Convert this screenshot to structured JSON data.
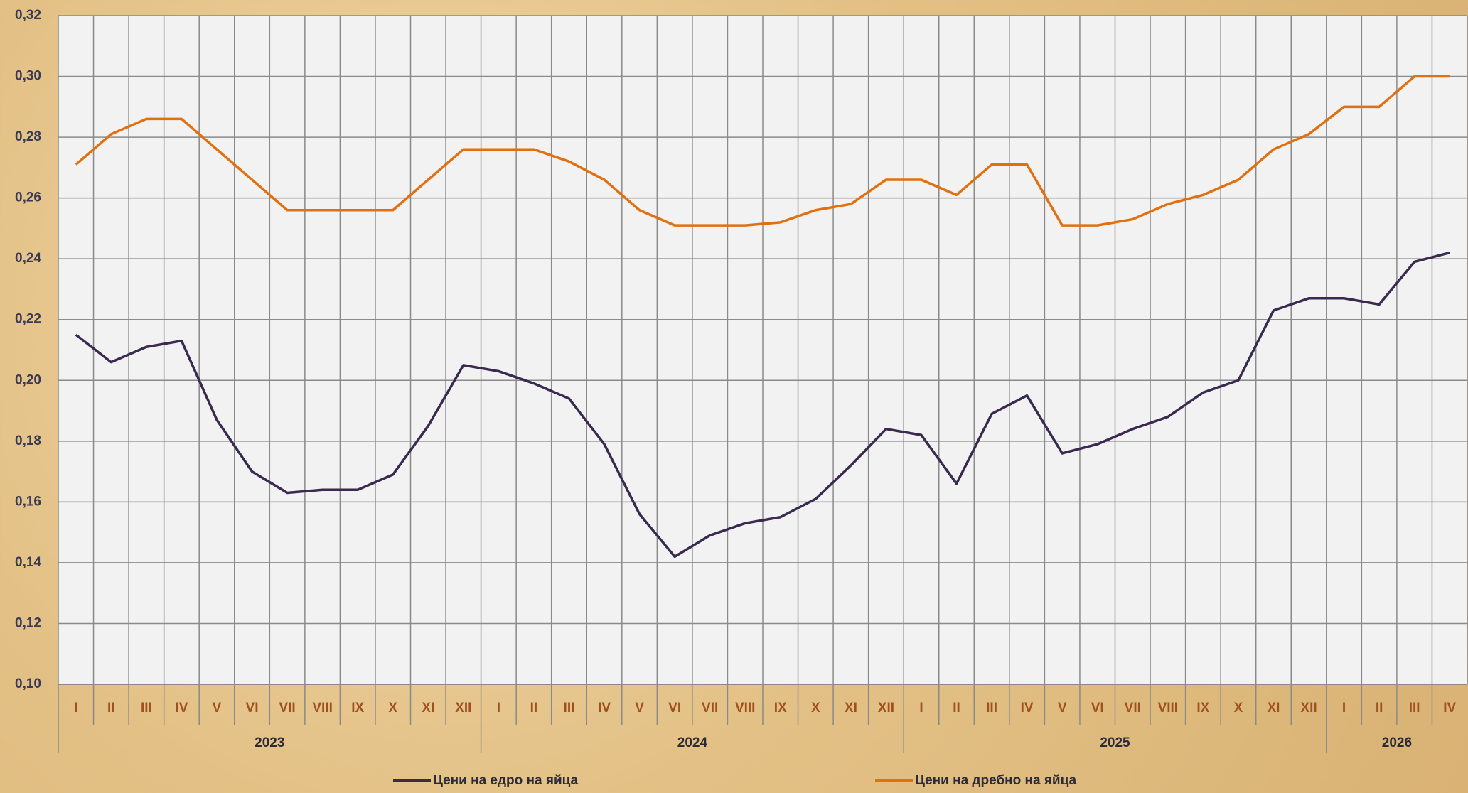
{
  "chart_data": {
    "type": "line",
    "categories": [
      "I",
      "II",
      "III",
      "IV",
      "V",
      "VI",
      "VII",
      "VIII",
      "IX",
      "X",
      "XI",
      "XII",
      "I",
      "II",
      "III",
      "IV",
      "V",
      "VI",
      "VII",
      "VIII",
      "IX",
      "X",
      "XI",
      "XII",
      "I",
      "II",
      "III",
      "IV",
      "V",
      "VI",
      "VII",
      "VIII",
      "IX",
      "X",
      "XI",
      "XII",
      "I",
      "II",
      "III",
      "IV"
    ],
    "groups": [
      "2023",
      "2024",
      "2025",
      "2026"
    ],
    "series": [
      {
        "name": "Цени на едро на яйца",
        "color": "#3b2a4f",
        "values": [
          0.215,
          0.206,
          0.211,
          0.213,
          0.187,
          0.17,
          0.163,
          0.164,
          0.164,
          0.169,
          0.185,
          0.205,
          0.203,
          0.199,
          0.194,
          0.179,
          0.156,
          0.142,
          0.149,
          0.153,
          0.155,
          0.161,
          0.172,
          0.184,
          0.182,
          0.166,
          0.189,
          0.195,
          0.176,
          0.179,
          0.184,
          0.188,
          0.196,
          0.2,
          0.223,
          0.227,
          0.227,
          0.225,
          0.239,
          0.242
        ]
      },
      {
        "name": "Цени на дребно на яйца",
        "color": "#e07010",
        "values": [
          0.271,
          0.281,
          0.286,
          0.286,
          0.276,
          0.266,
          0.256,
          0.256,
          0.256,
          0.256,
          0.266,
          0.276,
          0.276,
          0.276,
          0.272,
          0.266,
          0.256,
          0.251,
          0.251,
          0.251,
          0.252,
          0.256,
          0.258,
          0.266,
          0.266,
          0.261,
          0.271,
          0.271,
          0.251,
          0.251,
          0.253,
          0.258,
          0.261,
          0.266,
          0.276,
          0.281,
          0.29,
          0.29,
          0.3,
          0.3
        ]
      }
    ],
    "ylim": [
      0.1,
      0.32
    ],
    "yticks": [
      {
        "value": 0.1,
        "label": "0,10"
      },
      {
        "value": 0.12,
        "label": "0,12"
      },
      {
        "value": 0.14,
        "label": "0,14"
      },
      {
        "value": 0.16,
        "label": "0,16"
      },
      {
        "value": 0.18,
        "label": "0,18"
      },
      {
        "value": 0.2,
        "label": "0,20"
      },
      {
        "value": 0.22,
        "label": "0,22"
      },
      {
        "value": 0.24,
        "label": "0,24"
      },
      {
        "value": 0.26,
        "label": "0,26"
      },
      {
        "value": 0.28,
        "label": "0,28"
      },
      {
        "value": 0.3,
        "label": "0,30"
      },
      {
        "value": 0.32,
        "label": "0,32"
      }
    ],
    "grid": true
  }
}
